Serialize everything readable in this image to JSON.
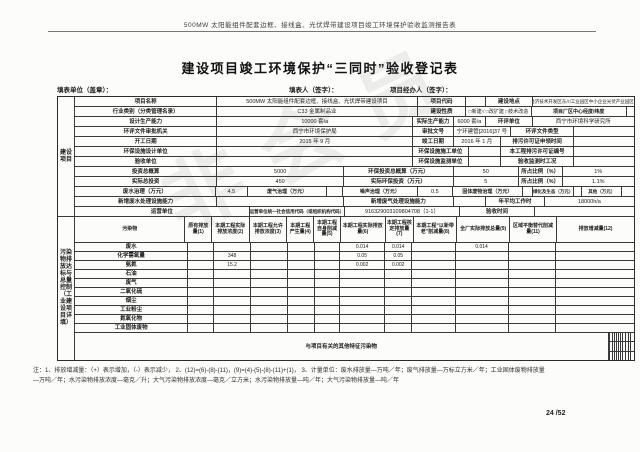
{
  "doc": {
    "top_header": "500MW 太阳能组件配套边框、接线盒、光伏焊带建设项目竣工环境保护验收监测报告表",
    "title": "建设项目竣工环境保护“三同时”验收登记表",
    "sign_unit": "填表单位（盖章）：",
    "sign_person": "填表人（签字）：",
    "sign_handler": "项目经办人（签字）：",
    "note_line1": "注：1、排放增减量：（+）表示增加，（-）表示减少，  2、(12)=(6)-(8)-(11)，(9)=(4)-(5)-(8)-(11)+(1)，  3、计量单位：废水排放量—万吨／年；废气排放量—万标立方米／年；工业固体废物排放量",
    "note_line2": "—万吨／年；水污染物排放浓度—毫克／升；大气污染物排放浓度—毫克／立方米；水污染物排放量—吨／年；大气污染物排放量—吨／年",
    "page_number": "24 /52",
    "watermark": "非会员"
  },
  "top": {
    "side_label": "建设项目",
    "r1": {
      "l1": "项目名称",
      "v1": "500MW 太阳能组件配套边框、接线盒、光伏焊带建设项目",
      "l2": "项目代码",
      "v2": "",
      "l3": "建设地点",
      "v3": "西宁经济技术开发区东川工业园区中小企业光伏产业园区甲2号"
    },
    "r2": {
      "l1": "行业类别（分类管理名录）",
      "v1": "C33 金属制品业",
      "l2": "建设性质",
      "v2": "□新建√ □改扩建 □技术改造",
      "l3": "项目厂区中心经度/纬度",
      "v3": ""
    },
    "r3": {
      "l1": "设计生产能力",
      "v1": "10000 套/a",
      "l2": "实际生产能力",
      "v2": "6000 套/a",
      "l3": "环评单位",
      "v3": "西宁市环境科学研究所"
    },
    "r4": {
      "l1": "环评文件审批机关",
      "v1": "西宁市环境保护局",
      "l2": "审批文号",
      "v2": "宁环建管[2016]37 号",
      "l3": "环评文件类型",
      "v3": ""
    },
    "r5": {
      "l1": "开工日期",
      "v1": "2015 年 9 月",
      "l2": "竣工日期",
      "v2": "2016 年 1 月",
      "l3": "排污许可证申领时间",
      "v3": ""
    },
    "r6": {
      "l1": "环保设施设计单位",
      "v1": "",
      "l2": "环保设施施工单位",
      "v2": "",
      "l3": "本工程排污许可证编号",
      "v3": ""
    },
    "r7": {
      "l1": "验收单位",
      "v1": "",
      "l2": "环保设施监测单位",
      "v2": "",
      "l3": "验收监测时工况",
      "v3": ""
    },
    "r8": {
      "l1": "投资总概算",
      "v1": "5000",
      "l2": "环保投资总概算（万元）",
      "v2": "50",
      "l3": "所占比例（%）",
      "v3": "1%"
    },
    "r9": {
      "l1": "实际总投资",
      "v1": "450",
      "l2": "实际环保投资（万元）",
      "v2": "5",
      "l3": "所占比例（%）",
      "v3": "1.1%"
    },
    "r10": {
      "l1": "废水治理（万元）",
      "v1": "4.5",
      "l2": "废气治理（万元）",
      "v2": "",
      "l3": "噪声治理（万元）",
      "v3": "0.5",
      "l4": "固体废物治理（万元）",
      "v4": "",
      "l5": "绿化及生态（万元）",
      "v5": "",
      "l6": "其他（万元）",
      "v6": ""
    },
    "r11": {
      "l1": "新增废水处理设施能力",
      "v1": "",
      "l2": "新增废气处理设施能力",
      "v2": "",
      "l3": "年平均工作时",
      "v3": "18000h/a"
    },
    "r12": {
      "l1": "运营单位",
      "l2": "运营单位统一社会信用代码（或组织机构代码）",
      "v2": "916329003109804708（1-1）",
      "l3": "验收时间",
      "v3": ""
    }
  },
  "pollution": {
    "side_label": "污染物排放达标与总量控制（工业建设项目详填）",
    "headers": [
      "污染物",
      "原有排放量(1)",
      "本期工程实际排放浓度(2)",
      "本期工程允许排放浓度(3)",
      "本期工程产生量(4)",
      "本期工程自身削减量(5)",
      "本期工程实际排放量(6)",
      "本期工程核定排放量(7)",
      "本期工程“以新带老”削减量(8)",
      "全厂实际排放总量(9)",
      "区域平衡替代削减量(11)",
      "排放增减量(12)"
    ],
    "rows": [
      {
        "name": "废水",
        "values": [
          "",
          "",
          "",
          "",
          "",
          "0.014",
          "0.014",
          "",
          "0.014",
          "",
          ""
        ]
      },
      {
        "name": "化学需氧量",
        "values": [
          "",
          "348",
          "",
          "",
          "",
          "0.05",
          "0.05",
          "",
          "",
          "",
          ""
        ]
      },
      {
        "name": "氨氮",
        "values": [
          "",
          "15.2",
          "",
          "",
          "",
          "0.002",
          "0.002",
          "",
          "",
          "",
          ""
        ]
      },
      {
        "name": "石油",
        "values": [
          "",
          "",
          "",
          "",
          "",
          "",
          "",
          "",
          "",
          "",
          ""
        ]
      },
      {
        "name": "废气",
        "values": [
          "",
          "",
          "",
          "",
          "",
          "",
          "",
          "",
          "",
          "",
          ""
        ]
      },
      {
        "name": "二氧化硫",
        "values": [
          "",
          "",
          "",
          "",
          "",
          "",
          "",
          "",
          "",
          "",
          ""
        ]
      },
      {
        "name": "烟尘",
        "values": [
          "",
          "",
          "",
          "",
          "",
          "",
          "",
          "",
          "",
          "",
          ""
        ]
      },
      {
        "name": "工业粉尘",
        "values": [
          "",
          "",
          "",
          "",
          "",
          "",
          "",
          "",
          "",
          "",
          ""
        ]
      },
      {
        "name": "氮氧化物",
        "values": [
          "",
          "",
          "",
          "",
          "",
          "",
          "",
          "",
          "",
          "",
          ""
        ]
      },
      {
        "name": "工业固体废物",
        "values": [
          "",
          "",
          "",
          "",
          "",
          "",
          "",
          "",
          "",
          "",
          ""
        ]
      }
    ],
    "other_label": "与项目有关的其他特征污染物"
  }
}
